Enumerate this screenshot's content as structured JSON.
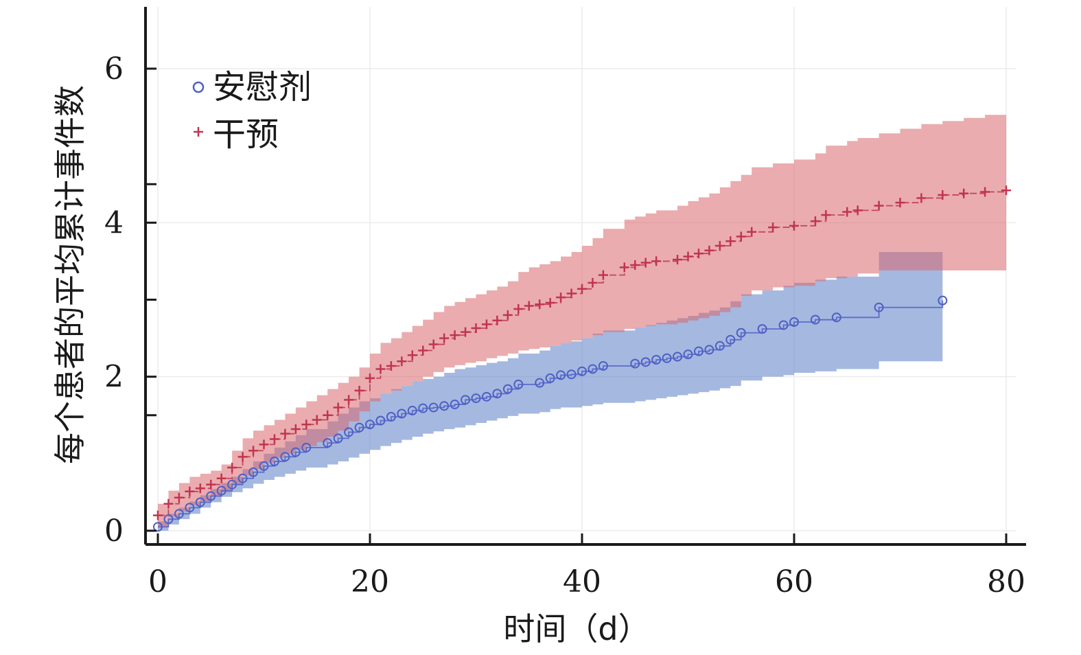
{
  "chart_data": {
    "type": "line",
    "title": "",
    "xlabel": "时间（d）",
    "ylabel": "每个患者的平均累计事件数",
    "xlim": [
      -1.5,
      81.5
    ],
    "ylim": [
      -0.2,
      6.8
    ],
    "xticks": [
      0,
      20,
      40,
      60,
      80
    ],
    "xtick_labels": [
      "0",
      "20",
      "40",
      "60",
      "80"
    ],
    "yticks": [
      0,
      2,
      4,
      6
    ],
    "ytick_labels": [
      "0",
      "2",
      "4",
      "6"
    ],
    "minor_yticks": [
      1.5,
      3,
      4.5
    ],
    "grid": true,
    "legend_position": "top-left",
    "series": [
      {
        "name": "安慰剂",
        "color": "#4f5fc4",
        "band_color": "#5b7ec6",
        "marker": "circle",
        "x": [
          0,
          1,
          2,
          3,
          4,
          5,
          6,
          7,
          8,
          9,
          10,
          11,
          12,
          13,
          14,
          16,
          17,
          18,
          19,
          20,
          21,
          22,
          23,
          24,
          25,
          26,
          27,
          28,
          29,
          30,
          31,
          32,
          33,
          34,
          36,
          37,
          38,
          39,
          40,
          41,
          42,
          45,
          46,
          47,
          48,
          49,
          50,
          51,
          52,
          53,
          54,
          55,
          57,
          59,
          60,
          62,
          64,
          68,
          74
        ],
        "y": [
          0.05,
          0.15,
          0.22,
          0.3,
          0.37,
          0.45,
          0.52,
          0.6,
          0.68,
          0.76,
          0.84,
          0.9,
          0.96,
          1.02,
          1.08,
          1.14,
          1.2,
          1.28,
          1.34,
          1.38,
          1.43,
          1.48,
          1.52,
          1.56,
          1.59,
          1.6,
          1.62,
          1.64,
          1.7,
          1.72,
          1.74,
          1.78,
          1.84,
          1.9,
          1.92,
          1.98,
          2.02,
          2.03,
          2.07,
          2.1,
          2.14,
          2.17,
          2.19,
          2.22,
          2.24,
          2.26,
          2.29,
          2.33,
          2.35,
          2.4,
          2.48,
          2.57,
          2.62,
          2.67,
          2.71,
          2.74,
          2.77,
          2.9,
          2.99
        ],
        "lower": [
          0.0,
          0.08,
          0.15,
          0.22,
          0.3,
          0.37,
          0.44,
          0.5,
          0.55,
          0.61,
          0.66,
          0.7,
          0.74,
          0.78,
          0.82,
          0.86,
          0.9,
          0.95,
          1.0,
          1.05,
          1.1,
          1.14,
          1.18,
          1.22,
          1.26,
          1.29,
          1.32,
          1.34,
          1.37,
          1.4,
          1.43,
          1.46,
          1.49,
          1.52,
          1.54,
          1.58,
          1.6,
          1.6,
          1.62,
          1.64,
          1.66,
          1.68,
          1.7,
          1.72,
          1.74,
          1.76,
          1.78,
          1.8,
          1.82,
          1.85,
          1.88,
          1.95,
          2.0,
          2.02,
          2.05,
          2.07,
          2.1,
          2.2,
          2.25
        ],
        "upper": [
          0.12,
          0.22,
          0.3,
          0.38,
          0.46,
          0.54,
          0.62,
          0.7,
          0.8,
          0.9,
          1.0,
          1.08,
          1.16,
          1.24,
          1.32,
          1.42,
          1.52,
          1.6,
          1.68,
          1.72,
          1.78,
          1.84,
          1.88,
          1.94,
          1.97,
          2.0,
          2.05,
          2.1,
          2.12,
          2.15,
          2.18,
          2.2,
          2.24,
          2.3,
          2.34,
          2.4,
          2.44,
          2.46,
          2.5,
          2.56,
          2.6,
          2.64,
          2.67,
          2.7,
          2.73,
          2.76,
          2.79,
          2.83,
          2.86,
          2.9,
          2.98,
          3.07,
          3.12,
          3.18,
          3.22,
          3.26,
          3.3,
          3.62,
          3.75
        ]
      },
      {
        "name": "干预",
        "color": "#c0344f",
        "band_color": "#d9676d",
        "marker": "plus",
        "x": [
          0,
          1,
          2,
          3,
          4,
          5,
          6,
          7,
          8,
          9,
          10,
          11,
          12,
          13,
          14,
          15,
          16,
          17,
          18,
          19,
          20,
          21,
          22,
          23,
          24,
          25,
          26,
          27,
          28,
          29,
          30,
          31,
          32,
          33,
          34,
          35,
          36,
          37,
          38,
          39,
          40,
          41,
          42,
          44,
          45,
          46,
          47,
          49,
          50,
          51,
          52,
          53,
          54,
          55,
          56,
          58,
          60,
          62,
          63,
          65,
          66,
          68,
          70,
          72,
          74,
          76,
          78,
          80
        ],
        "y": [
          0.2,
          0.35,
          0.43,
          0.51,
          0.55,
          0.6,
          0.68,
          0.82,
          0.96,
          1.04,
          1.12,
          1.19,
          1.26,
          1.32,
          1.38,
          1.44,
          1.5,
          1.6,
          1.7,
          1.82,
          1.98,
          2.1,
          2.14,
          2.2,
          2.28,
          2.34,
          2.42,
          2.5,
          2.54,
          2.58,
          2.63,
          2.68,
          2.73,
          2.8,
          2.88,
          2.92,
          2.94,
          2.96,
          3.03,
          3.08,
          3.14,
          3.22,
          3.32,
          3.42,
          3.45,
          3.48,
          3.5,
          3.52,
          3.56,
          3.6,
          3.64,
          3.7,
          3.76,
          3.82,
          3.88,
          3.94,
          3.96,
          4.02,
          4.1,
          4.14,
          4.16,
          4.22,
          4.26,
          4.32,
          4.36,
          4.38,
          4.4,
          4.42
        ],
        "lower": [
          0.05,
          0.18,
          0.25,
          0.33,
          0.38,
          0.44,
          0.5,
          0.6,
          0.72,
          0.8,
          0.88,
          0.95,
          1.0,
          1.05,
          1.1,
          1.15,
          1.22,
          1.3,
          1.42,
          1.55,
          1.68,
          1.78,
          1.82,
          1.88,
          1.94,
          2.0,
          2.06,
          2.12,
          2.15,
          2.18,
          2.2,
          2.24,
          2.27,
          2.3,
          2.34,
          2.36,
          2.38,
          2.4,
          2.44,
          2.47,
          2.5,
          2.54,
          2.58,
          2.62,
          2.64,
          2.66,
          2.68,
          2.7,
          2.73,
          2.76,
          2.79,
          2.84,
          2.9,
          3.05,
          3.12,
          3.16,
          3.18,
          3.24,
          3.28,
          3.3,
          3.34,
          3.38,
          3.38,
          3.38,
          3.38,
          3.38,
          3.38,
          3.38
        ],
        "upper": [
          0.35,
          0.52,
          0.62,
          0.7,
          0.74,
          0.78,
          0.86,
          1.04,
          1.2,
          1.3,
          1.37,
          1.44,
          1.52,
          1.6,
          1.68,
          1.76,
          1.84,
          1.92,
          2.0,
          2.12,
          2.3,
          2.44,
          2.5,
          2.58,
          2.66,
          2.74,
          2.84,
          2.92,
          2.97,
          3.02,
          3.07,
          3.12,
          3.17,
          3.24,
          3.36,
          3.42,
          3.46,
          3.5,
          3.56,
          3.62,
          3.7,
          3.8,
          3.92,
          4.04,
          4.08,
          4.12,
          4.16,
          4.22,
          4.28,
          4.33,
          4.38,
          4.46,
          4.54,
          4.62,
          4.72,
          4.77,
          4.82,
          4.9,
          5.0,
          5.06,
          5.1,
          5.16,
          5.22,
          5.28,
          5.32,
          5.36,
          5.4,
          5.44
        ]
      }
    ]
  }
}
